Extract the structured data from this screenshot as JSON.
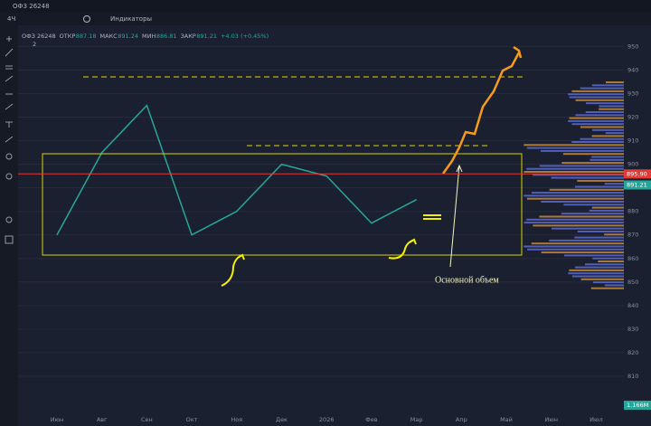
{
  "toolbar": {
    "symbol": "ОФЗ 26248",
    "interval": "4Ч",
    "indicators": "Индикаторы"
  },
  "legend": {
    "symbol": "ОФЗ 26248",
    "open_label": "ОТКР",
    "open": "887.18",
    "high_label": "МАКС",
    "high": "891.24",
    "low_label": "МИН",
    "low": "886.81",
    "close_label": "ЗАКР",
    "close": "891.21",
    "change": "+4.03 (+0.45%)",
    "count": "2"
  },
  "chart_data": {
    "type": "line",
    "categories": [
      "Июн",
      "Авг",
      "Сен",
      "Окт",
      "Ноя",
      "Дек",
      "2026",
      "Фев",
      "Мар",
      "Апр",
      "Май",
      "Июн",
      "Июл"
    ],
    "series": [
      {
        "name": "ОФЗ 26248",
        "color": "#26a69a",
        "values": [
          870,
          905,
          925,
          870,
          880,
          900,
          895,
          875,
          885,
          null,
          null,
          null,
          null
        ]
      }
    ],
    "ylim": [
      795,
      959
    ],
    "yticks": [
      810,
      820,
      830,
      840,
      850,
      860,
      870,
      880,
      890,
      900,
      910,
      920,
      930,
      940,
      950
    ],
    "price_line": {
      "value": 895.9,
      "label": "895.90",
      "color": "#e53935"
    },
    "last_price": {
      "value": 891.21,
      "label": "891.21",
      "color": "#26a69a"
    },
    "volume_label": "1.166M",
    "annotation": "Основной объем"
  }
}
